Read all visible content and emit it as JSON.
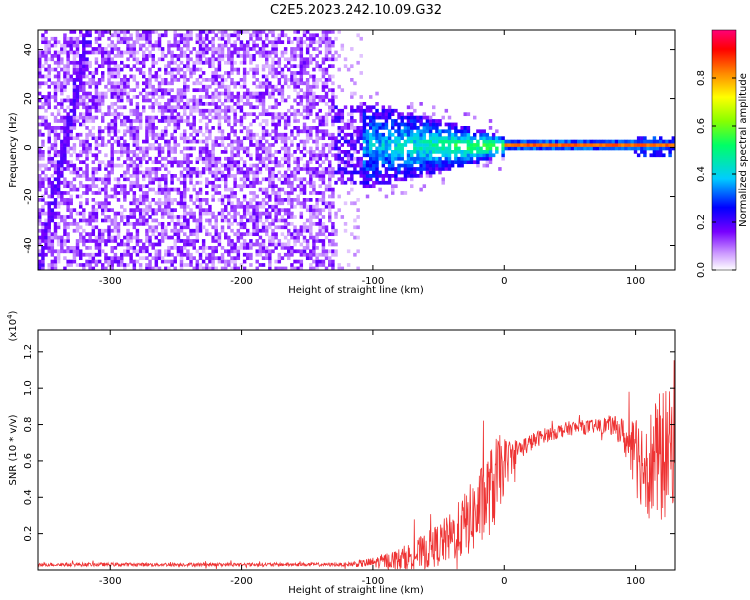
{
  "figure": {
    "title": "C2E5.2023.242.10.09.G32"
  },
  "chart_data": [
    {
      "type": "heatmap",
      "title": "C2E5.2023.242.10.09.G32",
      "xlabel": "Height of straight line (km)",
      "ylabel": "Frequency (Hz)",
      "xlim": [
        -355,
        130
      ],
      "ylim": [
        -50,
        48
      ],
      "x_ticks": [
        -300,
        -200,
        -100,
        0,
        100
      ],
      "y_ticks": [
        -40,
        -20,
        0,
        20,
        40
      ],
      "x_tick_labels": [
        "-300",
        "-200",
        "-100",
        "0",
        "100"
      ],
      "y_tick_labels": [
        "-40",
        "-20",
        "0",
        "20",
        "40"
      ],
      "colorbar": {
        "label": "Normalized spectral amplitude",
        "range": [
          0,
          1
        ],
        "ticks": [
          0.0,
          0.2,
          0.4,
          0.6,
          0.8
        ],
        "tick_labels": [
          "0.0",
          "0.2",
          "0.4",
          "0.6",
          "0.8"
        ],
        "colors": [
          "#ffffff",
          "#cc99ff",
          "#7700ff",
          "#0000ff",
          "#00ccff",
          "#00ff66",
          "#88ff00",
          "#ffff00",
          "#ff8800",
          "#ff0000",
          "#ff0077"
        ]
      },
      "regions": [
        {
          "x_range": [
            -355,
            -130
          ],
          "freq_range": [
            -50,
            48
          ],
          "amplitude": "low (0.05-0.2)"
        },
        {
          "x_range": [
            -130,
            -20
          ],
          "freq_range": [
            -18,
            18
          ],
          "amplitude": "medium (0.2-0.5)"
        },
        {
          "x_range": [
            -20,
            130
          ],
          "freq_range": [
            -1,
            1
          ],
          "amplitude": "high (0.7-0.9)"
        }
      ],
      "grid": false,
      "legend": "colorbar-right"
    },
    {
      "type": "line",
      "xlabel": "Height of straight line (km)",
      "ylabel": "SNR (10 * v/v)",
      "y_scale_label": "(x10",
      "y_scale_exp": "4",
      "y_scale_close": ")",
      "xlim": [
        -355,
        130
      ],
      "ylim": [
        0,
        1.32
      ],
      "x_ticks": [
        -300,
        -200,
        -100,
        0,
        100
      ],
      "y_ticks": [
        0.2,
        0.4,
        0.6,
        0.8,
        1.0,
        1.2
      ],
      "x_tick_labels": [
        "-300",
        "-200",
        "-100",
        "0",
        "100"
      ],
      "y_tick_labels": [
        "0.2",
        "0.4",
        "0.6",
        "0.8",
        "1.0",
        "1.2"
      ],
      "color": "#ee3333",
      "envelope": {
        "x": [
          -355,
          -300,
          -250,
          -200,
          -150,
          -120,
          -100,
          -80,
          -60,
          -40,
          -20,
          -5,
          0,
          10,
          30,
          50,
          70,
          80,
          90,
          95,
          100,
          110,
          120,
          130
        ],
        "base": [
          0.03,
          0.03,
          0.03,
          0.03,
          0.03,
          0.03,
          0.04,
          0.06,
          0.1,
          0.18,
          0.32,
          0.5,
          0.58,
          0.66,
          0.74,
          0.78,
          0.79,
          0.8,
          0.76,
          0.66,
          0.62,
          0.58,
          0.62,
          0.68
        ],
        "amp": [
          0.01,
          0.01,
          0.01,
          0.01,
          0.01,
          0.01,
          0.03,
          0.06,
          0.1,
          0.14,
          0.22,
          0.25,
          0.15,
          0.06,
          0.04,
          0.04,
          0.04,
          0.05,
          0.08,
          0.14,
          0.22,
          0.3,
          0.38,
          0.3
        ]
      },
      "grid": false
    }
  ]
}
